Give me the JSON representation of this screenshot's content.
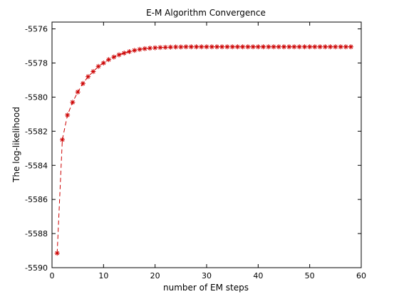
{
  "chart_data": {
    "type": "line",
    "title": "E-M Algorithm Convergence",
    "xlabel": "number of EM steps",
    "ylabel": "The log-likelihood",
    "xlim": [
      0,
      60
    ],
    "ylim": [
      -5590,
      -5575.6
    ],
    "xticks": [
      0,
      10,
      20,
      30,
      40,
      50,
      60
    ],
    "yticks": [
      -5590,
      -5588,
      -5586,
      -5584,
      -5582,
      -5580,
      -5578,
      -5576
    ],
    "grid": false,
    "line_style": "dashed",
    "marker": "asterisk",
    "series_color": "#cc0000",
    "series": [
      {
        "x": [
          1,
          2,
          3,
          4,
          5,
          6,
          7,
          8,
          9,
          10,
          11,
          12,
          13,
          14,
          15,
          16,
          17,
          18,
          19,
          20,
          21,
          22,
          23,
          24,
          25,
          26,
          27,
          28,
          29,
          30,
          31,
          32,
          33,
          34,
          35,
          36,
          37,
          38,
          39,
          40,
          41,
          42,
          43,
          44,
          45,
          46,
          47,
          48,
          49,
          50,
          51,
          52,
          53,
          54,
          55,
          56,
          57,
          58
        ],
        "values": [
          -5589.15,
          -5582.5,
          -5581.05,
          -5580.3,
          -5579.7,
          -5579.2,
          -5578.8,
          -5578.5,
          -5578.2,
          -5578.0,
          -5577.8,
          -5577.65,
          -5577.52,
          -5577.42,
          -5577.33,
          -5577.26,
          -5577.2,
          -5577.16,
          -5577.13,
          -5577.11,
          -5577.09,
          -5577.08,
          -5577.07,
          -5577.06,
          -5577.06,
          -5577.05,
          -5577.05,
          -5577.05,
          -5577.05,
          -5577.05,
          -5577.05,
          -5577.05,
          -5577.05,
          -5577.05,
          -5577.05,
          -5577.05,
          -5577.05,
          -5577.05,
          -5577.05,
          -5577.05,
          -5577.05,
          -5577.05,
          -5577.05,
          -5577.05,
          -5577.05,
          -5577.05,
          -5577.05,
          -5577.05,
          -5577.05,
          -5577.05,
          -5577.05,
          -5577.05,
          -5577.05,
          -5577.05,
          -5577.05,
          -5577.05,
          -5577.05,
          -5577.05
        ]
      }
    ]
  }
}
